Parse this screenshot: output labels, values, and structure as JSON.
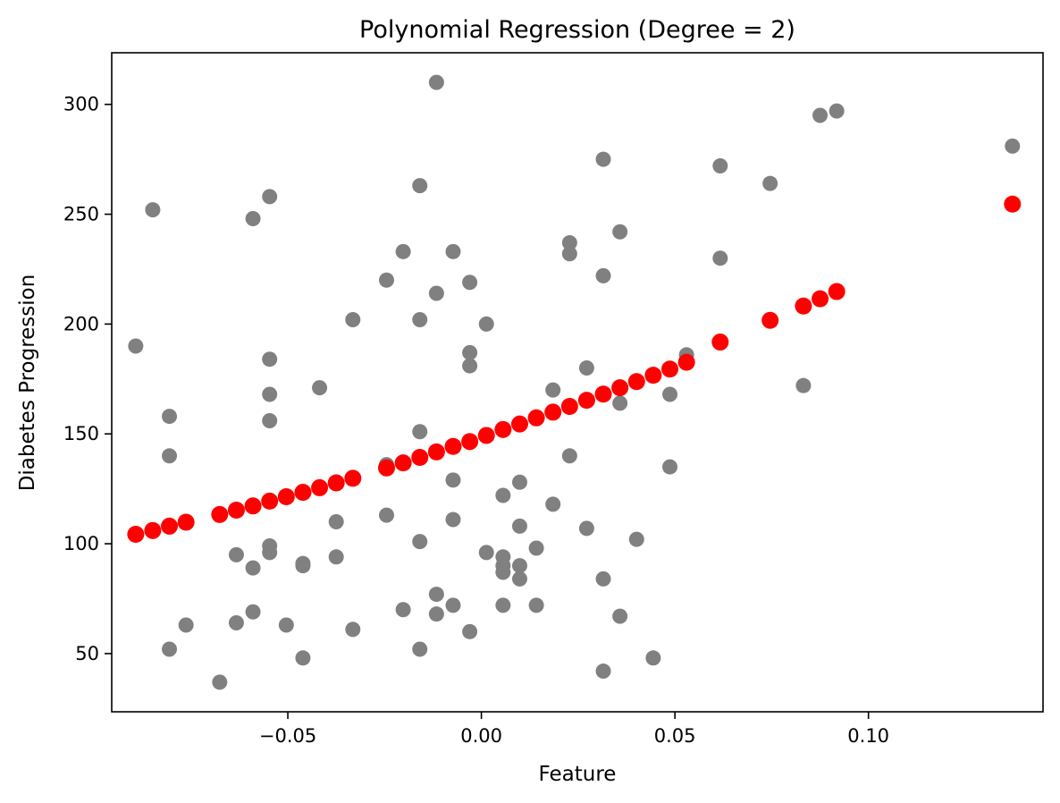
{
  "chart_data": {
    "type": "scatter",
    "title": "Polynomial Regression (Degree = 2)",
    "xlabel": "Feature",
    "ylabel": "Diabetes Progression",
    "xlim": [
      -0.0955,
      0.1451
    ],
    "ylim": [
      23.5,
      323.5
    ],
    "xticks": [
      -0.05,
      0.0,
      0.05,
      0.1
    ],
    "xtick_labels": [
      "−0.05",
      "0.00",
      "0.05",
      "0.10"
    ],
    "yticks": [
      50,
      100,
      150,
      200,
      250,
      300
    ],
    "ytick_labels": [
      "50",
      "100",
      "150",
      "200",
      "250",
      "300"
    ],
    "grid": false,
    "series": [
      {
        "color": "#808080",
        "points": [
          [
            -0.0893,
            190
          ],
          [
            -0.0849,
            252
          ],
          [
            -0.0806,
            158
          ],
          [
            -0.0806,
            140
          ],
          [
            -0.0806,
            52
          ],
          [
            -0.0763,
            63
          ],
          [
            -0.0676,
            37
          ],
          [
            -0.0633,
            95
          ],
          [
            -0.0633,
            64
          ],
          [
            -0.059,
            248
          ],
          [
            -0.059,
            89
          ],
          [
            -0.059,
            69
          ],
          [
            -0.0547,
            258
          ],
          [
            -0.0547,
            184
          ],
          [
            -0.0547,
            168
          ],
          [
            -0.0547,
            156
          ],
          [
            -0.0547,
            99
          ],
          [
            -0.0547,
            96
          ],
          [
            -0.0504,
            63
          ],
          [
            -0.0461,
            91
          ],
          [
            -0.0461,
            90
          ],
          [
            -0.0461,
            48
          ],
          [
            -0.0418,
            171
          ],
          [
            -0.0375,
            110
          ],
          [
            -0.0375,
            94
          ],
          [
            -0.0332,
            202
          ],
          [
            -0.0332,
            61
          ],
          [
            -0.0245,
            220
          ],
          [
            -0.0245,
            136
          ],
          [
            -0.0245,
            113
          ],
          [
            -0.0202,
            233
          ],
          [
            -0.0202,
            70
          ],
          [
            -0.0159,
            263
          ],
          [
            -0.0159,
            202
          ],
          [
            -0.0159,
            151
          ],
          [
            -0.0159,
            101
          ],
          [
            -0.0159,
            52
          ],
          [
            -0.0116,
            310
          ],
          [
            -0.0116,
            214
          ],
          [
            -0.0116,
            77
          ],
          [
            -0.0116,
            68
          ],
          [
            -0.0073,
            233
          ],
          [
            -0.0073,
            129
          ],
          [
            -0.0073,
            111
          ],
          [
            -0.0073,
            72
          ],
          [
            -0.003,
            219
          ],
          [
            -0.003,
            187
          ],
          [
            -0.003,
            181
          ],
          [
            -0.003,
            60
          ],
          [
            0.0013,
            200
          ],
          [
            0.0013,
            96
          ],
          [
            0.0056,
            122
          ],
          [
            0.0056,
            94
          ],
          [
            0.0056,
            90
          ],
          [
            0.0056,
            87
          ],
          [
            0.0056,
            72
          ],
          [
            0.0099,
            128
          ],
          [
            0.0099,
            108
          ],
          [
            0.0099,
            90
          ],
          [
            0.0099,
            84
          ],
          [
            0.0142,
            98
          ],
          [
            0.0142,
            72
          ],
          [
            0.0185,
            170
          ],
          [
            0.0185,
            118
          ],
          [
            0.0228,
            237
          ],
          [
            0.0228,
            232
          ],
          [
            0.0228,
            140
          ],
          [
            0.0272,
            180
          ],
          [
            0.0272,
            107
          ],
          [
            0.0315,
            275
          ],
          [
            0.0315,
            222
          ],
          [
            0.0315,
            84
          ],
          [
            0.0315,
            42
          ],
          [
            0.0358,
            242
          ],
          [
            0.0358,
            164
          ],
          [
            0.0358,
            67
          ],
          [
            0.0401,
            102
          ],
          [
            0.0444,
            48
          ],
          [
            0.0487,
            168
          ],
          [
            0.0487,
            135
          ],
          [
            0.053,
            186
          ],
          [
            0.0617,
            272
          ],
          [
            0.0617,
            230
          ],
          [
            0.0746,
            264
          ],
          [
            0.0832,
            172
          ],
          [
            0.0875,
            295
          ],
          [
            0.0918,
            297
          ],
          [
            0.1372,
            281
          ]
        ]
      },
      {
        "color": "#ff0000",
        "points": [
          [
            -0.0893,
            104.3
          ],
          [
            -0.0849,
            106.0
          ],
          [
            -0.0806,
            108.0
          ],
          [
            -0.0763,
            109.8
          ],
          [
            -0.0676,
            113.3
          ],
          [
            -0.0633,
            115.3
          ],
          [
            -0.059,
            117.2
          ],
          [
            -0.0547,
            119.4
          ],
          [
            -0.0504,
            121.4
          ],
          [
            -0.0461,
            123.4
          ],
          [
            -0.0418,
            125.5
          ],
          [
            -0.0375,
            127.7
          ],
          [
            -0.0332,
            129.8
          ],
          [
            -0.0245,
            134.5
          ],
          [
            -0.0202,
            136.8
          ],
          [
            -0.0159,
            139.3
          ],
          [
            -0.0116,
            141.8
          ],
          [
            -0.0073,
            144.3
          ],
          [
            -0.003,
            146.5
          ],
          [
            0.0013,
            149.3
          ],
          [
            0.0056,
            152.0
          ],
          [
            0.0099,
            154.5
          ],
          [
            0.0142,
            157.3
          ],
          [
            0.0185,
            159.9
          ],
          [
            0.0228,
            162.5
          ],
          [
            0.0272,
            165.3
          ],
          [
            0.0315,
            168.1
          ],
          [
            0.0358,
            171.0
          ],
          [
            0.0401,
            173.8
          ],
          [
            0.0444,
            176.7
          ],
          [
            0.0487,
            179.5
          ],
          [
            0.053,
            182.6
          ],
          [
            0.0617,
            191.8
          ],
          [
            0.0746,
            201.7
          ],
          [
            0.0832,
            208.2
          ],
          [
            0.0875,
            211.5
          ],
          [
            0.0918,
            214.8
          ],
          [
            0.1372,
            254.6
          ]
        ]
      }
    ]
  }
}
